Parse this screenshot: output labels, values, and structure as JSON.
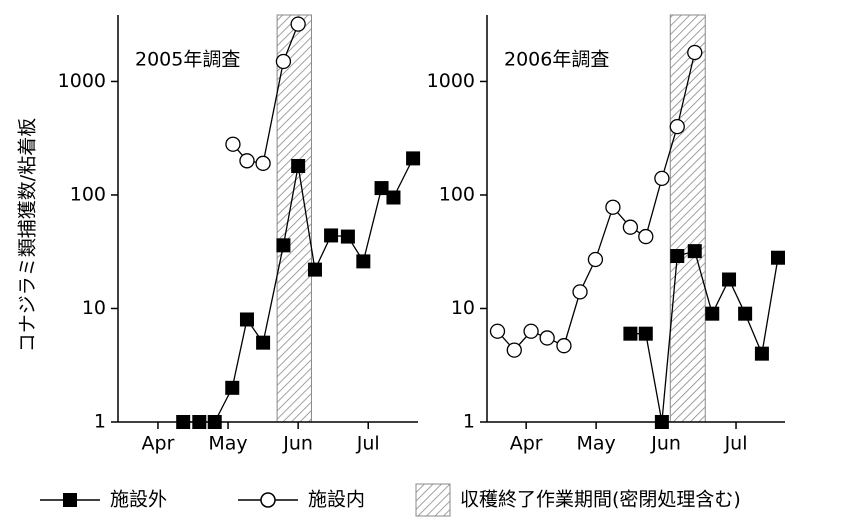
{
  "y_label": "コナジラミ類捕獲数/粘着板",
  "chart_data": [
    {
      "type": "line",
      "title": "2005年調査",
      "log_y": true,
      "xlim": [
        3.93,
        8.21
      ],
      "ylim": [
        1,
        3850
      ],
      "xticks": [
        {
          "value": 4.5,
          "label": "Apr"
        },
        {
          "value": 5.5,
          "label": "May"
        },
        {
          "value": 6.5,
          "label": "Jun"
        },
        {
          "value": 7.5,
          "label": "Jul"
        }
      ],
      "yticks": [
        1,
        10,
        100,
        1000
      ],
      "shade": {
        "x": [
          6.2,
          6.69
        ],
        "label": "収穫終了作業期間(密閉処理含む)"
      },
      "series": [
        {
          "name": "施設外",
          "color": "#000000",
          "marker": "square",
          "x": [
            4.86,
            5.09,
            5.31,
            5.56,
            5.77,
            6.0,
            6.29,
            6.5,
            6.74,
            6.97,
            7.21,
            7.43,
            7.69,
            7.86,
            8.14
          ],
          "values": [
            1,
            1,
            1,
            2,
            8,
            5,
            36,
            180,
            22,
            44,
            43,
            26,
            115,
            95,
            210
          ]
        },
        {
          "name": "施設内",
          "color": "#000000",
          "marker": "circle",
          "x": [
            5.57,
            5.77,
            6.0,
            6.29,
            6.5
          ],
          "values": [
            280,
            200,
            190,
            1500,
            3200
          ]
        }
      ]
    },
    {
      "type": "line",
      "title": "2006年調査",
      "log_y": true,
      "xlim": [
        3.94,
        8.2
      ],
      "ylim": [
        1,
        3850
      ],
      "xticks": [
        {
          "value": 4.5,
          "label": "Apr"
        },
        {
          "value": 5.5,
          "label": "May"
        },
        {
          "value": 6.5,
          "label": "Jun"
        },
        {
          "value": 7.5,
          "label": "Jul"
        }
      ],
      "yticks": [
        1,
        10,
        100,
        1000
      ],
      "shade": {
        "x": [
          6.56,
          7.06
        ]
      },
      "series": [
        {
          "name": "施設外",
          "color": "#000000",
          "marker": "square",
          "x": [
            5.99,
            6.21,
            6.44,
            6.66,
            6.91,
            7.16,
            7.4,
            7.63,
            7.87,
            8.1
          ],
          "values": [
            6,
            6,
            1,
            29,
            32,
            9,
            18,
            9,
            4,
            28
          ]
        },
        {
          "name": "施設内",
          "color": "#000000",
          "marker": "circle",
          "x": [
            4.09,
            4.33,
            4.57,
            4.8,
            5.04,
            5.27,
            5.49,
            5.74,
            5.99,
            6.21,
            6.44,
            6.66,
            6.91
          ],
          "values": [
            6.3,
            4.3,
            6.3,
            5.5,
            4.7,
            14,
            27,
            78,
            52,
            43,
            140,
            400,
            1800
          ]
        }
      ]
    }
  ]
}
